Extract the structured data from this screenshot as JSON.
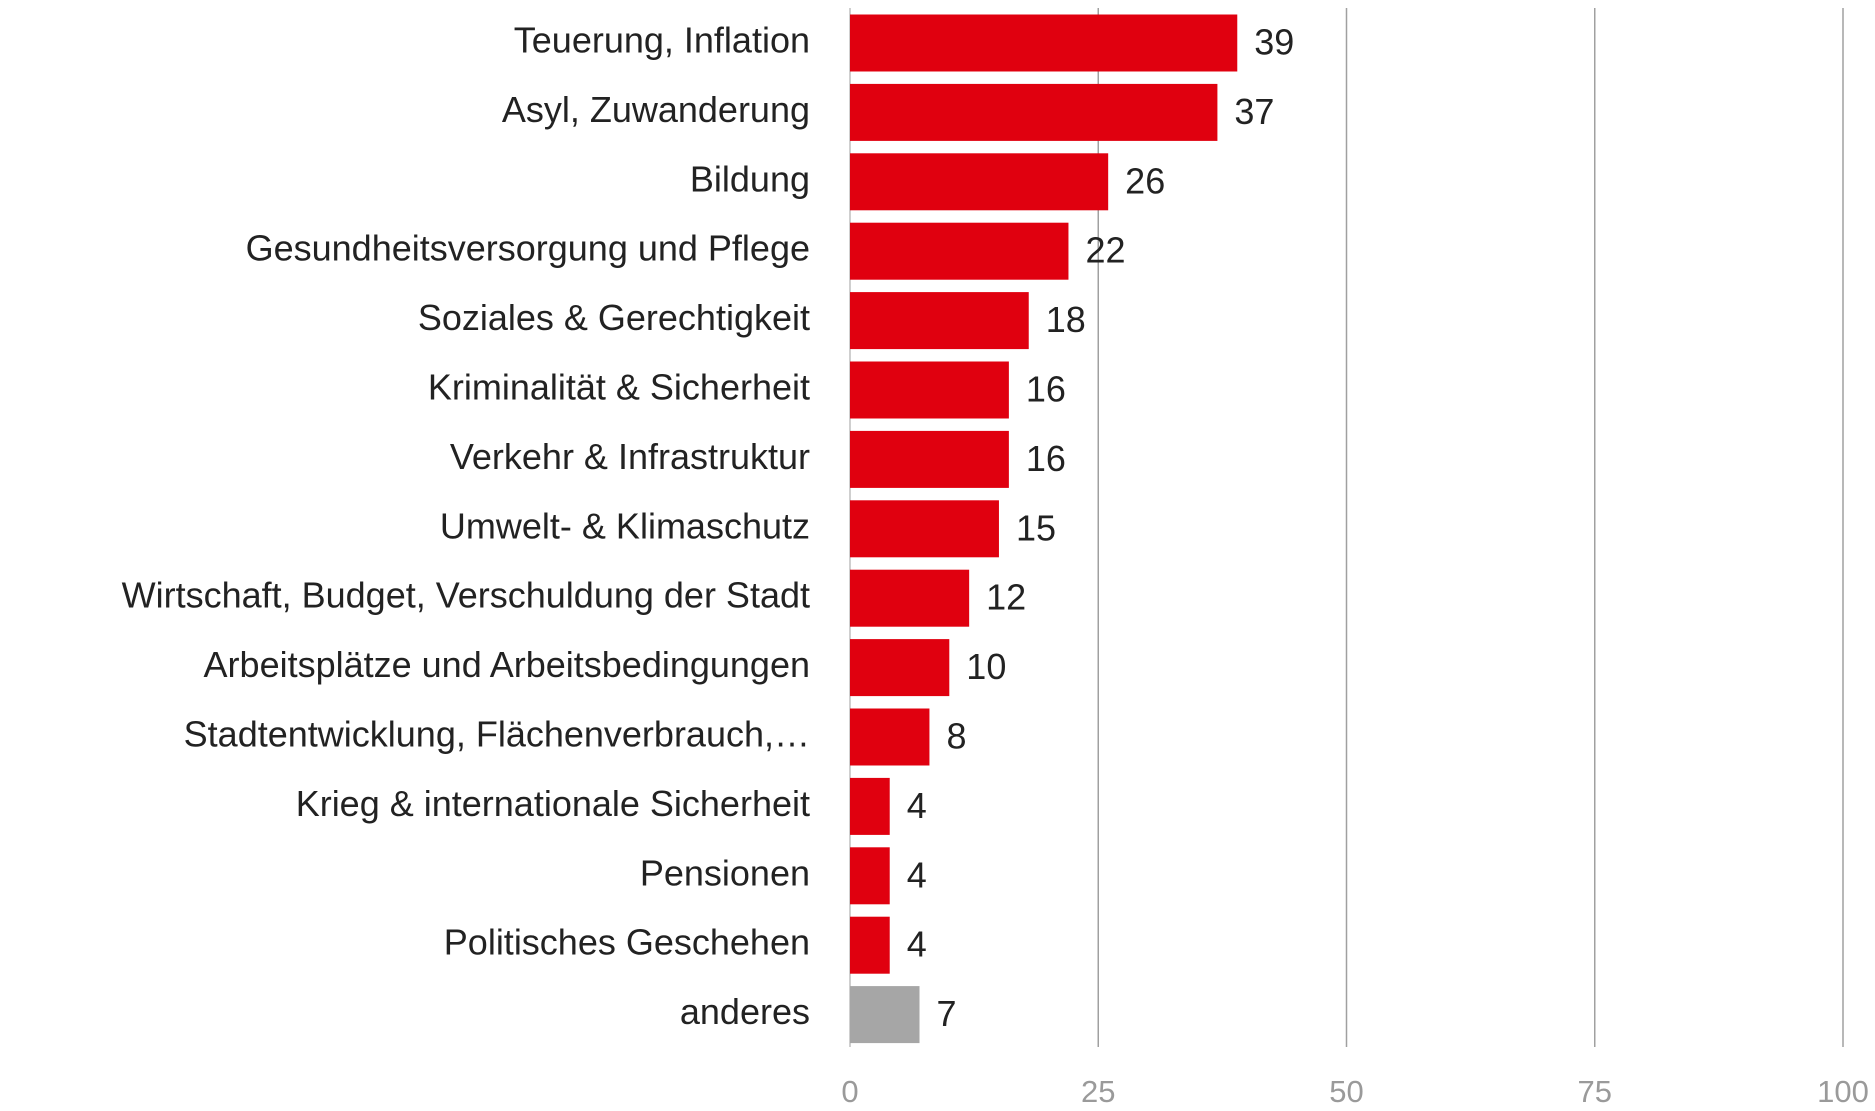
{
  "chart_data": {
    "type": "hbar",
    "categories": [
      "Teuerung, Inflation",
      "Asyl, Zuwanderung",
      "Bildung",
      "Gesundheitsversorgung und Pflege",
      "Soziales & Gerechtigkeit",
      "Kriminalität & Sicherheit",
      "Verkehr & Infrastruktur",
      "Umwelt- & Klimaschutz",
      "Wirtschaft, Budget, Verschuldung der Stadt",
      "Arbeitsplätze und Arbeitsbedingungen",
      "Stadtentwicklung, Flächenverbrauch,…",
      "Krieg & internationale Sicherheit",
      "Pensionen",
      "Politisches Geschehen",
      "anderes"
    ],
    "values": [
      39,
      37,
      26,
      22,
      18,
      16,
      16,
      15,
      12,
      10,
      8,
      4,
      4,
      4,
      7
    ],
    "colors": [
      "#e0000f",
      "#e0000f",
      "#e0000f",
      "#e0000f",
      "#e0000f",
      "#e0000f",
      "#e0000f",
      "#e0000f",
      "#e0000f",
      "#e0000f",
      "#e0000f",
      "#e0000f",
      "#e0000f",
      "#e0000f",
      "#a6a6a6"
    ],
    "xlim": [
      0,
      100
    ],
    "xticks": [
      0,
      25,
      50,
      75,
      100
    ],
    "grid": true
  }
}
